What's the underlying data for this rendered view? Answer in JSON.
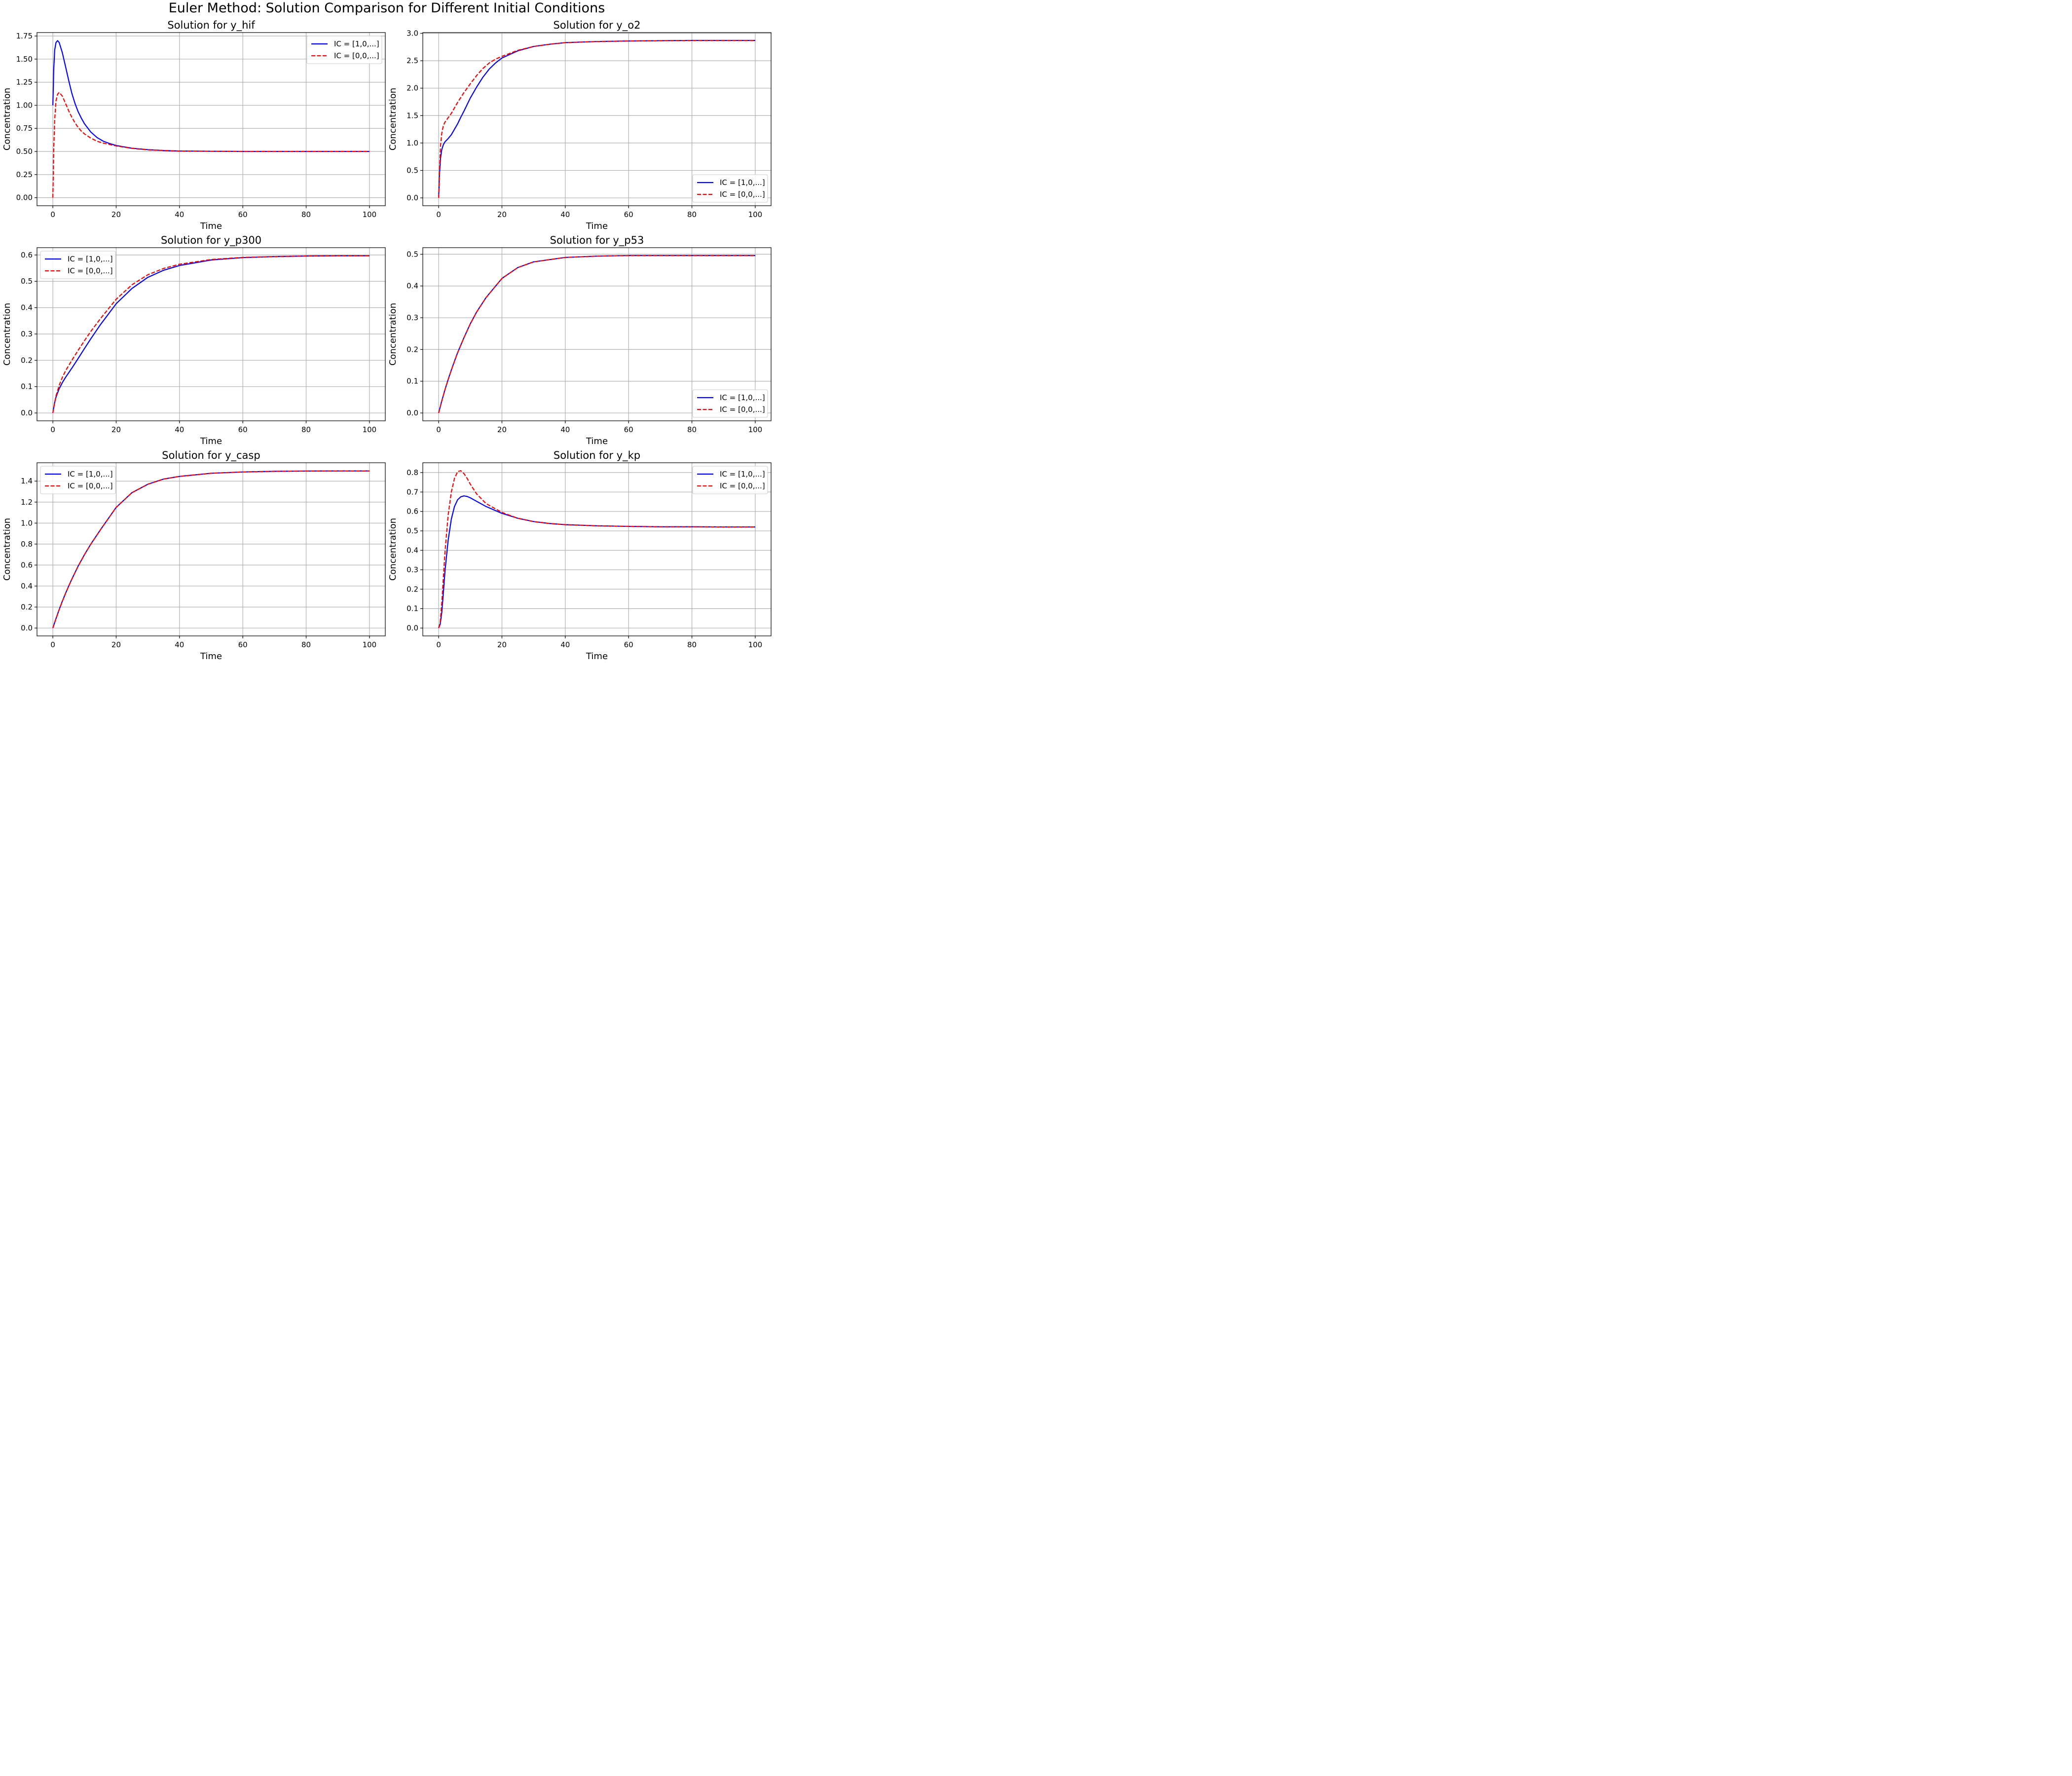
{
  "figure": {
    "suptitle": "Euler Method: Solution Comparison for Different Initial Conditions"
  },
  "colors": {
    "series_ic1": "#0000ff",
    "series_ic0": "#ff0000",
    "grid": "#b0b0b0",
    "axes": "#000000"
  },
  "chart_data": [
    {
      "type": "line",
      "title": "Solution for y_hif",
      "xlabel": "Time",
      "ylabel": "Concentration",
      "xlim": [
        -5,
        105
      ],
      "ylim": [
        -0.0875,
        1.7875
      ],
      "xticks": [
        0,
        20,
        40,
        60,
        80,
        100
      ],
      "xtick_labels": [
        "0",
        "20",
        "40",
        "60",
        "80",
        "100"
      ],
      "yticks": [
        0,
        0.25,
        0.5,
        0.75,
        1.0,
        1.25,
        1.5,
        1.75
      ],
      "ytick_labels": [
        "0.00",
        "0.25",
        "0.50",
        "0.75",
        "1.00",
        "1.25",
        "1.50",
        "1.75"
      ],
      "grid": true,
      "legend": "upper right",
      "series": [
        {
          "name": "IC = [1,0,...]",
          "color": "#0000ff",
          "style": "solid",
          "x": [
            0,
            0.3,
            0.6,
            1,
            1.5,
            2,
            3,
            4,
            5,
            6,
            7,
            8,
            9,
            10,
            12,
            14,
            16,
            18,
            20,
            25,
            30,
            35,
            40,
            50,
            60,
            70,
            80,
            90,
            100
          ],
          "y": [
            1.0,
            1.4,
            1.6,
            1.68,
            1.7,
            1.68,
            1.57,
            1.42,
            1.27,
            1.13,
            1.02,
            0.93,
            0.86,
            0.8,
            0.71,
            0.65,
            0.61,
            0.585,
            0.565,
            0.535,
            0.52,
            0.51,
            0.505,
            0.502,
            0.5,
            0.5,
            0.5,
            0.5,
            0.5
          ]
        },
        {
          "name": "IC = [0,0,...]",
          "color": "#ff0000",
          "style": "dashed",
          "x": [
            0,
            0.3,
            0.6,
            1,
            1.5,
            2,
            3,
            4,
            5,
            6,
            7,
            8,
            9,
            10,
            12,
            14,
            16,
            18,
            20,
            25,
            30,
            35,
            40,
            50,
            60,
            70,
            80,
            90,
            100
          ],
          "y": [
            0.0,
            0.55,
            0.85,
            1.05,
            1.12,
            1.14,
            1.1,
            1.02,
            0.94,
            0.87,
            0.81,
            0.76,
            0.72,
            0.69,
            0.645,
            0.61,
            0.59,
            0.575,
            0.56,
            0.533,
            0.518,
            0.51,
            0.505,
            0.502,
            0.5,
            0.5,
            0.5,
            0.5,
            0.5
          ]
        }
      ]
    },
    {
      "type": "line",
      "title": "Solution for y_o2",
      "xlabel": "Time",
      "ylabel": "Concentration",
      "xlim": [
        -5,
        105
      ],
      "ylim": [
        -0.1435,
        3.0135
      ],
      "xticks": [
        0,
        20,
        40,
        60,
        80,
        100
      ],
      "xtick_labels": [
        "0",
        "20",
        "40",
        "60",
        "80",
        "100"
      ],
      "yticks": [
        0,
        0.5,
        1.0,
        1.5,
        2.0,
        2.5,
        3.0
      ],
      "ytick_labels": [
        "0.0",
        "0.5",
        "1.0",
        "1.5",
        "2.0",
        "2.5",
        "3.0"
      ],
      "grid": true,
      "legend": "lower right",
      "series": [
        {
          "name": "IC = [1,0,...]",
          "color": "#0000ff",
          "style": "solid",
          "x": [
            0,
            0.3,
            0.6,
            1,
            1.5,
            2,
            3,
            4,
            5,
            6,
            7,
            8,
            10,
            12,
            14,
            16,
            18,
            20,
            25,
            30,
            35,
            40,
            50,
            60,
            70,
            80,
            90,
            100
          ],
          "y": [
            0.0,
            0.45,
            0.72,
            0.88,
            0.97,
            1.02,
            1.08,
            1.15,
            1.25,
            1.35,
            1.47,
            1.58,
            1.82,
            2.02,
            2.2,
            2.35,
            2.46,
            2.55,
            2.68,
            2.76,
            2.8,
            2.83,
            2.85,
            2.86,
            2.865,
            2.87,
            2.87,
            2.87
          ]
        },
        {
          "name": "IC = [0,0,...]",
          "color": "#ff0000",
          "style": "dashed",
          "x": [
            0,
            0.3,
            0.6,
            1,
            1.5,
            2,
            3,
            4,
            5,
            6,
            7,
            8,
            10,
            12,
            14,
            16,
            18,
            20,
            25,
            30,
            35,
            40,
            50,
            60,
            70,
            80,
            90,
            100
          ],
          "y": [
            0.0,
            0.55,
            0.95,
            1.18,
            1.32,
            1.38,
            1.46,
            1.54,
            1.64,
            1.74,
            1.83,
            1.92,
            2.08,
            2.23,
            2.36,
            2.46,
            2.53,
            2.58,
            2.69,
            2.76,
            2.8,
            2.83,
            2.85,
            2.86,
            2.865,
            2.87,
            2.87,
            2.87
          ]
        }
      ]
    },
    {
      "type": "line",
      "title": "Solution for y_p300",
      "xlabel": "Time",
      "ylabel": "Concentration",
      "xlim": [
        -5,
        105
      ],
      "ylim": [
        -0.0299,
        0.6279
      ],
      "xticks": [
        0,
        20,
        40,
        60,
        80,
        100
      ],
      "xtick_labels": [
        "0",
        "20",
        "40",
        "60",
        "80",
        "100"
      ],
      "yticks": [
        0,
        0.1,
        0.2,
        0.3,
        0.4,
        0.5,
        0.6
      ],
      "ytick_labels": [
        "0.0",
        "0.1",
        "0.2",
        "0.3",
        "0.4",
        "0.5",
        "0.6"
      ],
      "grid": true,
      "legend": "upper left",
      "series": [
        {
          "name": "IC = [1,0,...]",
          "color": "#0000ff",
          "style": "solid",
          "x": [
            0,
            0.5,
            1,
            2,
            3,
            4,
            6,
            8,
            10,
            12,
            15,
            20,
            25,
            30,
            35,
            40,
            50,
            60,
            70,
            80,
            90,
            100
          ],
          "y": [
            0.0,
            0.035,
            0.06,
            0.092,
            0.115,
            0.135,
            0.17,
            0.207,
            0.245,
            0.282,
            0.335,
            0.415,
            0.473,
            0.515,
            0.542,
            0.56,
            0.581,
            0.59,
            0.594,
            0.596,
            0.597,
            0.597
          ]
        },
        {
          "name": "IC = [0,0,...]",
          "color": "#ff0000",
          "style": "dashed",
          "x": [
            0,
            0.5,
            1,
            2,
            3,
            4,
            6,
            8,
            10,
            12,
            15,
            20,
            25,
            30,
            35,
            40,
            50,
            60,
            70,
            80,
            90,
            100
          ],
          "y": [
            0.0,
            0.035,
            0.065,
            0.105,
            0.135,
            0.16,
            0.2,
            0.238,
            0.275,
            0.31,
            0.358,
            0.432,
            0.487,
            0.525,
            0.549,
            0.565,
            0.583,
            0.591,
            0.594,
            0.596,
            0.597,
            0.597
          ]
        }
      ]
    },
    {
      "type": "line",
      "title": "Solution for y_p53",
      "xlabel": "Time",
      "ylabel": "Concentration",
      "xlim": [
        -5,
        105
      ],
      "ylim": [
        -0.0248,
        0.5208
      ],
      "xticks": [
        0,
        20,
        40,
        60,
        80,
        100
      ],
      "xtick_labels": [
        "0",
        "20",
        "40",
        "60",
        "80",
        "100"
      ],
      "yticks": [
        0,
        0.1,
        0.2,
        0.3,
        0.4,
        0.5
      ],
      "ytick_labels": [
        "0.0",
        "0.1",
        "0.2",
        "0.3",
        "0.4",
        "0.5"
      ],
      "grid": true,
      "legend": "lower right",
      "series": [
        {
          "name": "IC = [1,0,...]",
          "color": "#0000ff",
          "style": "solid",
          "x": [
            0,
            1,
            2,
            3,
            4,
            5,
            6,
            8,
            10,
            12,
            15,
            20,
            25,
            30,
            40,
            50,
            60,
            70,
            80,
            90,
            100
          ],
          "y": [
            0.0,
            0.038,
            0.073,
            0.105,
            0.135,
            0.163,
            0.19,
            0.237,
            0.281,
            0.318,
            0.364,
            0.424,
            0.458,
            0.476,
            0.49,
            0.494,
            0.496,
            0.496,
            0.496,
            0.496,
            0.496
          ]
        },
        {
          "name": "IC = [0,0,...]",
          "color": "#ff0000",
          "style": "dashed",
          "x": [
            0,
            1,
            2,
            3,
            4,
            5,
            6,
            8,
            10,
            12,
            15,
            20,
            25,
            30,
            40,
            50,
            60,
            70,
            80,
            90,
            100
          ],
          "y": [
            0.0,
            0.038,
            0.073,
            0.105,
            0.135,
            0.163,
            0.19,
            0.237,
            0.281,
            0.318,
            0.364,
            0.424,
            0.458,
            0.476,
            0.49,
            0.494,
            0.496,
            0.496,
            0.496,
            0.496,
            0.496
          ]
        }
      ]
    },
    {
      "type": "line",
      "title": "Solution for y_casp",
      "xlabel": "Time",
      "ylabel": "Concentration",
      "xlim": [
        -5,
        105
      ],
      "ylim": [
        -0.075,
        1.575
      ],
      "xticks": [
        0,
        20,
        40,
        60,
        80,
        100
      ],
      "xtick_labels": [
        "0",
        "20",
        "40",
        "60",
        "80",
        "100"
      ],
      "yticks": [
        0,
        0.2,
        0.4,
        0.6,
        0.8,
        1.0,
        1.2,
        1.4
      ],
      "ytick_labels": [
        "0.0",
        "0.2",
        "0.4",
        "0.6",
        "0.8",
        "1.0",
        "1.2",
        "1.4"
      ],
      "grid": true,
      "legend": "upper left",
      "series": [
        {
          "name": "IC = [1,0,...]",
          "color": "#0000ff",
          "style": "solid",
          "x": [
            0,
            1,
            2,
            3,
            4,
            5,
            6,
            8,
            10,
            12,
            15,
            20,
            25,
            30,
            35,
            40,
            50,
            60,
            70,
            80,
            90,
            100
          ],
          "y": [
            0.0,
            0.09,
            0.175,
            0.255,
            0.33,
            0.4,
            0.466,
            0.59,
            0.7,
            0.8,
            0.935,
            1.15,
            1.29,
            1.37,
            1.42,
            1.445,
            1.475,
            1.487,
            1.493,
            1.496,
            1.497,
            1.497
          ]
        },
        {
          "name": "IC = [0,0,...]",
          "color": "#ff0000",
          "style": "dashed",
          "x": [
            0,
            1,
            2,
            3,
            4,
            5,
            6,
            8,
            10,
            12,
            15,
            20,
            25,
            30,
            35,
            40,
            50,
            60,
            70,
            80,
            90,
            100
          ],
          "y": [
            0.0,
            0.09,
            0.175,
            0.255,
            0.33,
            0.4,
            0.466,
            0.59,
            0.7,
            0.8,
            0.935,
            1.15,
            1.29,
            1.37,
            1.42,
            1.445,
            1.475,
            1.487,
            1.493,
            1.496,
            1.497,
            1.497
          ]
        }
      ]
    },
    {
      "type": "line",
      "title": "Solution for y_kp",
      "xlabel": "Time",
      "ylabel": "Concentration",
      "xlim": [
        -5,
        105
      ],
      "ylim": [
        -0.0405,
        0.8505
      ],
      "xticks": [
        0,
        20,
        40,
        60,
        80,
        100
      ],
      "xtick_labels": [
        "0",
        "20",
        "40",
        "60",
        "80",
        "100"
      ],
      "yticks": [
        0,
        0.1,
        0.2,
        0.3,
        0.4,
        0.5,
        0.6,
        0.7,
        0.8
      ],
      "ytick_labels": [
        "0.0",
        "0.1",
        "0.2",
        "0.3",
        "0.4",
        "0.5",
        "0.6",
        "0.7",
        "0.8"
      ],
      "grid": true,
      "legend": "upper right",
      "series": [
        {
          "name": "IC = [1,0,...]",
          "color": "#0000ff",
          "style": "solid",
          "x": [
            0,
            0.5,
            1,
            1.5,
            2,
            3,
            4,
            5,
            6,
            7,
            8,
            9,
            10,
            12,
            15,
            20,
            25,
            30,
            35,
            40,
            50,
            60,
            70,
            80,
            90,
            100
          ],
          "y": [
            0.0,
            0.02,
            0.08,
            0.18,
            0.29,
            0.45,
            0.56,
            0.625,
            0.66,
            0.675,
            0.68,
            0.677,
            0.67,
            0.652,
            0.625,
            0.59,
            0.565,
            0.548,
            0.538,
            0.532,
            0.526,
            0.523,
            0.521,
            0.521,
            0.52,
            0.52
          ]
        },
        {
          "name": "IC = [0,0,...]",
          "color": "#ff0000",
          "style": "dashed",
          "x": [
            0,
            0.5,
            1,
            1.5,
            2,
            3,
            4,
            5,
            6,
            7,
            8,
            9,
            10,
            12,
            15,
            20,
            25,
            30,
            35,
            40,
            50,
            60,
            70,
            80,
            90,
            100
          ],
          "y": [
            0.0,
            0.03,
            0.13,
            0.26,
            0.39,
            0.58,
            0.7,
            0.77,
            0.805,
            0.81,
            0.795,
            0.77,
            0.74,
            0.69,
            0.64,
            0.595,
            0.565,
            0.548,
            0.538,
            0.532,
            0.526,
            0.523,
            0.521,
            0.521,
            0.52,
            0.52
          ]
        }
      ]
    }
  ]
}
